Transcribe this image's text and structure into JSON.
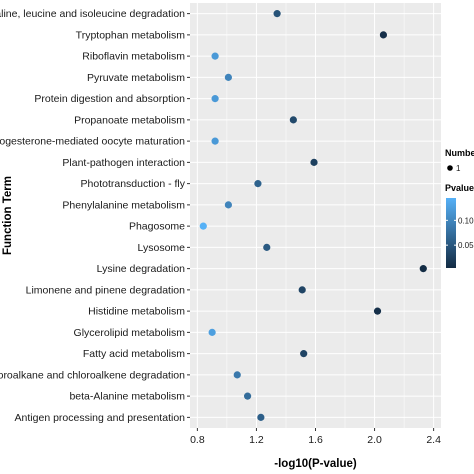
{
  "chart_data": {
    "type": "scatter",
    "xlabel": "-log10(P-value)",
    "ylabel": "Function Term",
    "xlim": [
      0.75,
      2.45
    ],
    "x_ticks": [
      "0.8",
      "1.2",
      "1.6",
      "2.0",
      "2.4"
    ],
    "x_tick_values": [
      0.8,
      1.2,
      1.6,
      2.0,
      2.4
    ],
    "grid": true,
    "panel_background": "#ebebeb",
    "grid_color": "#ffffff",
    "categories": [
      "Valine, leucine and isoleucine degradation",
      "Tryptophan metabolism",
      "Riboflavin metabolism",
      "Pyruvate metabolism",
      "Protein digestion and absorption",
      "Propanoate metabolism",
      "Progesterone-mediated oocyte maturation",
      "Plant-pathogen interaction",
      "Phototransduction - fly",
      "Phenylalanine metabolism",
      "Phagosome",
      "Lysosome",
      "Lysine degradation",
      "Limonene and pinene degradation",
      "Histidine metabolism",
      "Glycerolipid metabolism",
      "Fatty acid metabolism",
      "Chloroalkane and chloroalkene degradation",
      "beta-Alanine metabolism",
      "Antigen processing and presentation"
    ],
    "x": [
      1.34,
      2.06,
      0.92,
      1.01,
      0.92,
      1.45,
      0.92,
      1.59,
      1.21,
      1.01,
      0.84,
      1.27,
      2.33,
      1.51,
      2.02,
      0.9,
      1.52,
      1.07,
      1.14,
      1.23
    ],
    "number": [
      1,
      1,
      1,
      1,
      1,
      1,
      1,
      1,
      1,
      1,
      1,
      1,
      1,
      1,
      1,
      1,
      1,
      1,
      1,
      1
    ],
    "legend": {
      "position": "right",
      "size_title": "Number",
      "size_value": "1",
      "color_title": "Pvalue",
      "color_ticks": [
        "0.10",
        "0.05"
      ],
      "color_tick_values": [
        0.1,
        0.05
      ],
      "color_range": [
        0.004,
        0.145
      ],
      "color_low": "#132b43",
      "color_high": "#56b1f7"
    }
  }
}
